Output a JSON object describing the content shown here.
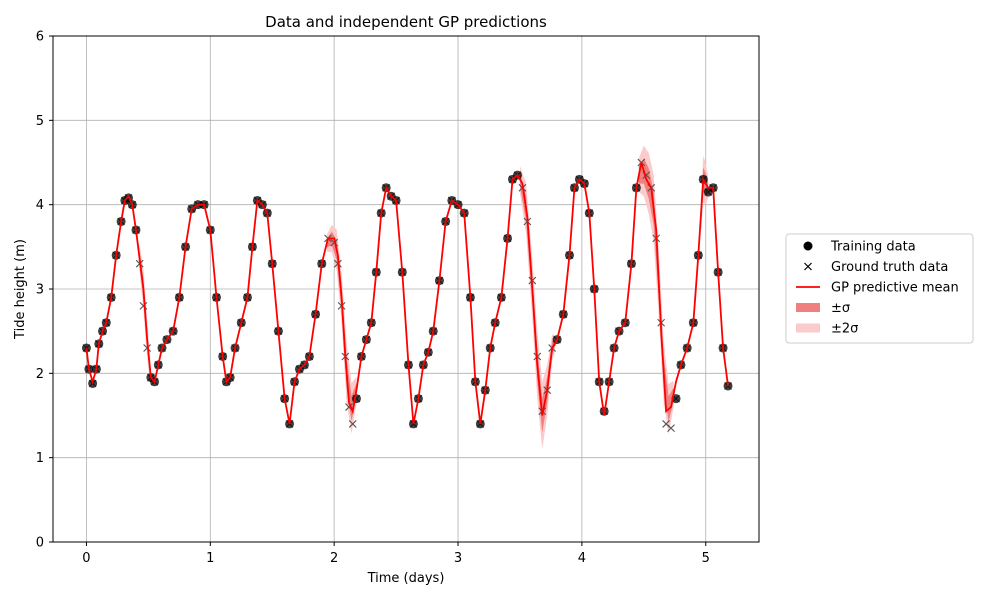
{
  "chart_data": {
    "type": "line",
    "title": "Data and independent GP predictions",
    "xlabel": "Time (days)",
    "ylabel": "Tide height (m)",
    "xlim": [
      -0.27,
      5.43
    ],
    "ylim": [
      0,
      6
    ],
    "xticks": [
      "0",
      "1",
      "2",
      "3",
      "4",
      "5"
    ],
    "yticks": [
      "0",
      "1",
      "2",
      "3",
      "4",
      "5",
      "6"
    ],
    "grid": true,
    "legend_position": "right",
    "colors": {
      "training": "#000000",
      "truth": "#555555",
      "mean": "#ff0000",
      "band1": "#f08080",
      "band2": "#fbcaca",
      "grid": "#b0b0b0"
    },
    "gaps": [
      [
        0.42,
        0.52
      ],
      [
        1.94,
        2.18
      ],
      [
        3.5,
        3.78
      ],
      [
        4.46,
        4.74
      ]
    ],
    "series": [
      {
        "name": "Ground truth data",
        "x": [
          0,
          0.02,
          0.05,
          0.08,
          0.1,
          0.13,
          0.16,
          0.2,
          0.24,
          0.28,
          0.31,
          0.34,
          0.37,
          0.4,
          0.43,
          0.46,
          0.49,
          0.52,
          0.55,
          0.58,
          0.61,
          0.65,
          0.7,
          0.75,
          0.8,
          0.85,
          0.9,
          0.95,
          1.0,
          1.05,
          1.1,
          1.13,
          1.16,
          1.2,
          1.25,
          1.3,
          1.34,
          1.38,
          1.42,
          1.46,
          1.5,
          1.55,
          1.6,
          1.64,
          1.68,
          1.72,
          1.76,
          1.8,
          1.85,
          1.9,
          1.95,
          2.0,
          2.03,
          2.06,
          2.09,
          2.12,
          2.15,
          2.18,
          2.22,
          2.26,
          2.3,
          2.34,
          2.38,
          2.42,
          2.46,
          2.5,
          2.55,
          2.6,
          2.64,
          2.68,
          2.72,
          2.76,
          2.8,
          2.85,
          2.9,
          2.95,
          3.0,
          3.05,
          3.1,
          3.14,
          3.18,
          3.22,
          3.26,
          3.3,
          3.35,
          3.4,
          3.44,
          3.48,
          3.52,
          3.56,
          3.6,
          3.64,
          3.68,
          3.72,
          3.76,
          3.8,
          3.85,
          3.9,
          3.94,
          3.98,
          4.02,
          4.06,
          4.1,
          4.14,
          4.18,
          4.22,
          4.26,
          4.3,
          4.35,
          4.4,
          4.44,
          4.48,
          4.52,
          4.56,
          4.6,
          4.64,
          4.68,
          4.72,
          4.76,
          4.8,
          4.85,
          4.9,
          4.94,
          4.98,
          5.02,
          5.06,
          5.1,
          5.14,
          5.18
        ],
        "values": [
          2.3,
          2.05,
          1.88,
          2.05,
          2.35,
          2.5,
          2.6,
          2.9,
          3.4,
          3.8,
          4.05,
          4.08,
          4.0,
          3.7,
          3.3,
          2.8,
          2.3,
          1.95,
          1.9,
          2.1,
          2.3,
          2.4,
          2.5,
          2.9,
          3.5,
          3.95,
          4.0,
          4.0,
          3.7,
          2.9,
          2.2,
          1.9,
          1.95,
          2.3,
          2.6,
          2.9,
          3.5,
          4.05,
          4.0,
          3.9,
          3.3,
          2.5,
          1.7,
          1.4,
          1.9,
          2.05,
          2.1,
          2.2,
          2.7,
          3.3,
          3.6,
          3.55,
          3.3,
          2.8,
          2.2,
          1.6,
          1.4,
          1.7,
          2.2,
          2.4,
          2.6,
          3.2,
          3.9,
          4.2,
          4.1,
          4.05,
          3.2,
          2.1,
          1.4,
          1.7,
          2.1,
          2.25,
          2.5,
          3.1,
          3.8,
          4.05,
          4.0,
          3.9,
          2.9,
          1.9,
          1.4,
          1.8,
          2.3,
          2.6,
          2.9,
          3.6,
          4.3,
          4.35,
          4.2,
          3.8,
          3.1,
          2.2,
          1.55,
          1.8,
          2.3,
          2.4,
          2.7,
          3.4,
          4.2,
          4.3,
          4.25,
          3.9,
          3.0,
          1.9,
          1.55,
          1.9,
          2.3,
          2.5,
          2.6,
          3.3,
          4.2,
          4.5,
          4.35,
          4.2,
          3.6,
          2.6,
          1.4,
          1.35,
          1.7,
          2.1,
          2.3,
          2.6,
          3.4,
          4.3,
          4.15,
          4.2,
          3.2,
          2.3,
          1.85
        ]
      },
      {
        "name": "GP predictive mean",
        "x": [
          0,
          0.02,
          0.05,
          0.08,
          0.1,
          0.13,
          0.16,
          0.2,
          0.24,
          0.28,
          0.31,
          0.34,
          0.37,
          0.4,
          0.43,
          0.46,
          0.49,
          0.52,
          0.55,
          0.58,
          0.61,
          0.65,
          0.7,
          0.75,
          0.8,
          0.85,
          0.9,
          0.95,
          1.0,
          1.05,
          1.1,
          1.13,
          1.16,
          1.2,
          1.25,
          1.3,
          1.34,
          1.38,
          1.42,
          1.46,
          1.5,
          1.55,
          1.6,
          1.64,
          1.68,
          1.72,
          1.76,
          1.8,
          1.85,
          1.9,
          1.95,
          2.0,
          2.03,
          2.06,
          2.09,
          2.12,
          2.15,
          2.18,
          2.22,
          2.26,
          2.3,
          2.34,
          2.38,
          2.42,
          2.46,
          2.5,
          2.55,
          2.6,
          2.64,
          2.68,
          2.72,
          2.76,
          2.8,
          2.85,
          2.9,
          2.95,
          3.0,
          3.05,
          3.1,
          3.14,
          3.18,
          3.22,
          3.26,
          3.3,
          3.35,
          3.4,
          3.44,
          3.48,
          3.52,
          3.56,
          3.6,
          3.64,
          3.68,
          3.72,
          3.76,
          3.8,
          3.85,
          3.9,
          3.94,
          3.98,
          4.02,
          4.06,
          4.1,
          4.14,
          4.18,
          4.22,
          4.26,
          4.3,
          4.35,
          4.4,
          4.44,
          4.48,
          4.52,
          4.56,
          4.6,
          4.64,
          4.68,
          4.72,
          4.76,
          4.8,
          4.85,
          4.9,
          4.94,
          4.98,
          5.02,
          5.06,
          5.1,
          5.14,
          5.18
        ],
        "values": [
          2.3,
          2.05,
          1.9,
          2.05,
          2.35,
          2.5,
          2.6,
          2.9,
          3.4,
          3.8,
          4.05,
          4.1,
          4.0,
          3.7,
          3.35,
          3.0,
          2.4,
          1.95,
          1.9,
          2.1,
          2.3,
          2.4,
          2.5,
          2.9,
          3.5,
          3.95,
          4.0,
          4.0,
          3.7,
          2.9,
          2.2,
          1.9,
          1.95,
          2.3,
          2.6,
          2.9,
          3.5,
          4.05,
          4.0,
          3.9,
          3.3,
          2.5,
          1.7,
          1.4,
          1.9,
          2.05,
          2.1,
          2.2,
          2.7,
          3.3,
          3.6,
          3.6,
          3.4,
          2.9,
          2.2,
          1.65,
          1.55,
          1.8,
          2.2,
          2.4,
          2.6,
          3.2,
          3.9,
          4.2,
          4.1,
          4.05,
          3.2,
          2.1,
          1.4,
          1.7,
          2.1,
          2.25,
          2.5,
          3.1,
          3.8,
          4.05,
          4.0,
          3.9,
          2.9,
          1.9,
          1.4,
          1.8,
          2.3,
          2.6,
          2.9,
          3.6,
          4.3,
          4.35,
          4.25,
          3.85,
          3.0,
          2.1,
          1.5,
          1.8,
          2.3,
          2.4,
          2.7,
          3.4,
          4.2,
          4.3,
          4.25,
          3.9,
          3.0,
          1.9,
          1.5,
          1.9,
          2.3,
          2.5,
          2.6,
          3.3,
          4.2,
          4.5,
          4.3,
          4.2,
          3.7,
          2.5,
          1.55,
          1.6,
          1.9,
          2.1,
          2.3,
          2.6,
          3.4,
          4.3,
          4.2,
          4.2,
          3.2,
          2.3,
          1.85
        ]
      },
      {
        "name": "±σ",
        "x": [
          0.42,
          0.44,
          0.46,
          0.48,
          0.5,
          0.52,
          1.94,
          1.98,
          2.02,
          2.06,
          2.1,
          2.14,
          2.18,
          3.5,
          3.55,
          3.6,
          3.64,
          3.68,
          3.72,
          3.76,
          3.78,
          4.46,
          4.5,
          4.54,
          4.58,
          4.62,
          4.66,
          4.7,
          4.74,
          4.96,
          4.98,
          5.0,
          5.02
        ],
        "half_width": [
          0.05,
          0.1,
          0.12,
          0.12,
          0.1,
          0.05,
          0.05,
          0.08,
          0.12,
          0.15,
          0.18,
          0.15,
          0.08,
          0.08,
          0.15,
          0.18,
          0.2,
          0.2,
          0.15,
          0.08,
          0.05,
          0.1,
          0.15,
          0.18,
          0.2,
          0.2,
          0.18,
          0.15,
          0.08,
          0.1,
          0.14,
          0.12,
          0.06
        ]
      },
      {
        "name": "±2σ",
        "x": [
          0.42,
          0.44,
          0.46,
          0.48,
          0.5,
          0.52,
          1.94,
          1.98,
          2.02,
          2.06,
          2.1,
          2.14,
          2.18,
          3.5,
          3.55,
          3.6,
          3.64,
          3.68,
          3.72,
          3.76,
          3.78,
          4.46,
          4.5,
          4.54,
          4.58,
          4.62,
          4.66,
          4.7,
          4.74,
          4.96,
          4.98,
          5.0,
          5.02
        ],
        "half_width": [
          0.1,
          0.2,
          0.24,
          0.24,
          0.2,
          0.1,
          0.1,
          0.16,
          0.24,
          0.3,
          0.36,
          0.3,
          0.16,
          0.16,
          0.3,
          0.36,
          0.4,
          0.4,
          0.3,
          0.16,
          0.1,
          0.2,
          0.3,
          0.36,
          0.4,
          0.4,
          0.36,
          0.3,
          0.16,
          0.2,
          0.28,
          0.24,
          0.12
        ]
      }
    ],
    "legend": [
      {
        "label": "Training data",
        "marker": "dot"
      },
      {
        "label": "Ground truth data",
        "marker": "cross"
      },
      {
        "label": "GP predictive mean",
        "marker": "line"
      },
      {
        "label": "±σ",
        "marker": "band1"
      },
      {
        "label": "±2σ",
        "marker": "band2"
      }
    ]
  }
}
